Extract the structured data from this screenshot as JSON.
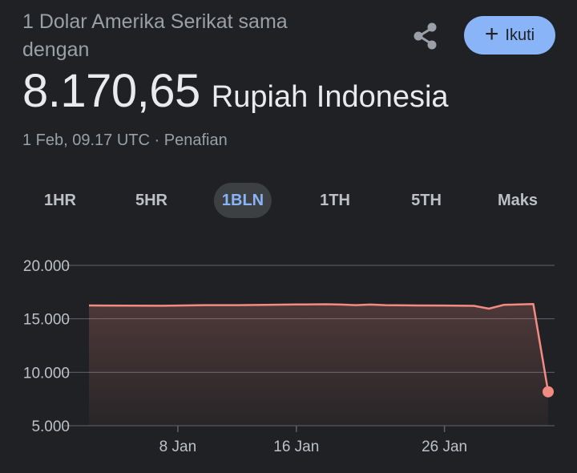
{
  "header": {
    "subtitle": "1 Dolar Amerika Serikat sama dengan",
    "value": "8.170,65",
    "currency": "Rupiah Indonesia",
    "meta": "1 Feb, 09.17 UTC · Penafian",
    "follow_label": "Ikuti",
    "share_icon": "share-icon",
    "plus_icon": "plus-icon"
  },
  "tabs": [
    {
      "label": "1HR",
      "active": false
    },
    {
      "label": "5HR",
      "active": false
    },
    {
      "label": "1BLN",
      "active": true
    },
    {
      "label": "1TH",
      "active": false
    },
    {
      "label": "5TH",
      "active": false
    },
    {
      "label": "Maks",
      "active": false
    }
  ],
  "colors": {
    "background": "#202124",
    "line": "#f28b82",
    "accent": "#8ab4f8",
    "grid": "#5f6368"
  },
  "chart_data": {
    "type": "area",
    "ylim": [
      5000,
      20000
    ],
    "yticks": [
      20000,
      15000,
      10000,
      5000
    ],
    "ytick_labels": [
      "20.000",
      "15.000",
      "10.000",
      "5.000"
    ],
    "xlim": [
      2,
      33
    ],
    "xticks": [
      8,
      16,
      26
    ],
    "xtick_labels": [
      "8 Jan",
      "16 Jan",
      "26 Jan"
    ],
    "grid": true,
    "series": [
      {
        "x": [
          2,
          5,
          7,
          8,
          10,
          12,
          14,
          16,
          18,
          19,
          20,
          21,
          22,
          24,
          26,
          28,
          29,
          30,
          31,
          32,
          33
        ],
        "y": [
          16250,
          16230,
          16220,
          16240,
          16280,
          16280,
          16310,
          16340,
          16360,
          16330,
          16280,
          16330,
          16280,
          16250,
          16240,
          16210,
          15950,
          16300,
          16350,
          16380,
          8170.65
        ]
      }
    ]
  }
}
